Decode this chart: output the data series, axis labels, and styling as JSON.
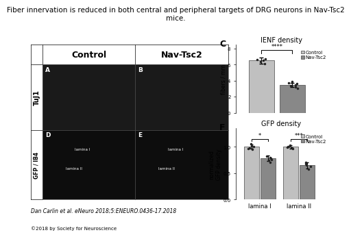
{
  "title": "Fiber innervation is reduced in both central and peripheral targets of DRG neurons in Nav-Tsc2\nmice.",
  "title_fontsize": 7.5,
  "citation": "Dan Carlin et al. eNeuro 2018;5:ENEURO.0436-17.2018",
  "copyright": "©2018 by Society for Neuroscience",
  "col_labels": [
    "Control",
    "Nav-Tsc2"
  ],
  "row_label_top": "TuJ1",
  "row_label_bottom": "GFP / IB4",
  "ienf_control_mean": 6.5,
  "ienf_navtsc2_mean": 3.5,
  "ienf_control_sem": 0.35,
  "ienf_navtsc2_sem": 0.25,
  "ienf_control_dots": [
    6.1,
    6.4,
    6.7,
    6.5,
    6.6
  ],
  "ienf_navtsc2_dots": [
    3.0,
    3.2,
    3.5,
    3.7,
    3.9,
    3.4,
    3.6
  ],
  "ienf_ylabel": "fibers / mm",
  "ienf_ylim": [
    0,
    8.5
  ],
  "ienf_yticks": [
    0,
    2,
    4,
    6,
    8
  ],
  "ienf_sig": "****",
  "gfp_laminaI_ctrl_mean": 1.0,
  "gfp_laminaI_nav_mean": 0.78,
  "gfp_laminaII_ctrl_mean": 1.0,
  "gfp_laminaII_nav_mean": 0.65,
  "gfp_laminaI_ctrl_sem": 0.04,
  "gfp_laminaI_nav_sem": 0.05,
  "gfp_laminaII_ctrl_sem": 0.03,
  "gfp_laminaII_nav_sem": 0.06,
  "gfp_laminaI_ctrl_dots": [
    0.95,
    1.0,
    1.05,
    0.98,
    1.02,
    0.97
  ],
  "gfp_laminaI_nav_dots": [
    0.7,
    0.75,
    0.8,
    0.82,
    0.76,
    0.79
  ],
  "gfp_laminaII_ctrl_dots": [
    0.96,
    1.0,
    1.03,
    0.99,
    1.01,
    0.98
  ],
  "gfp_laminaII_nav_dots": [
    0.58,
    0.63,
    0.68,
    0.7,
    0.65
  ],
  "gfp_ylabel": "normalized\nGFP density",
  "gfp_ylim": [
    0,
    1.35
  ],
  "gfp_yticks": [
    0.0,
    0.5,
    1.0
  ],
  "gfp_sig_laminaI": "*",
  "gfp_sig_laminaII": "***",
  "color_control": "#c0c0c0",
  "color_navtsc2": "#888888",
  "bar_edge_color": "#444444",
  "dot_color": "#222222",
  "bg_color": "#ffffff",
  "legend_labels": [
    "Control",
    "Nav-Tsc2"
  ],
  "legend_fontsize": 5.0,
  "panel_bg_top": "#1a1a1a",
  "panel_bg_bot": "#0d0d0d",
  "row_label_bg": "#5a5a5a"
}
